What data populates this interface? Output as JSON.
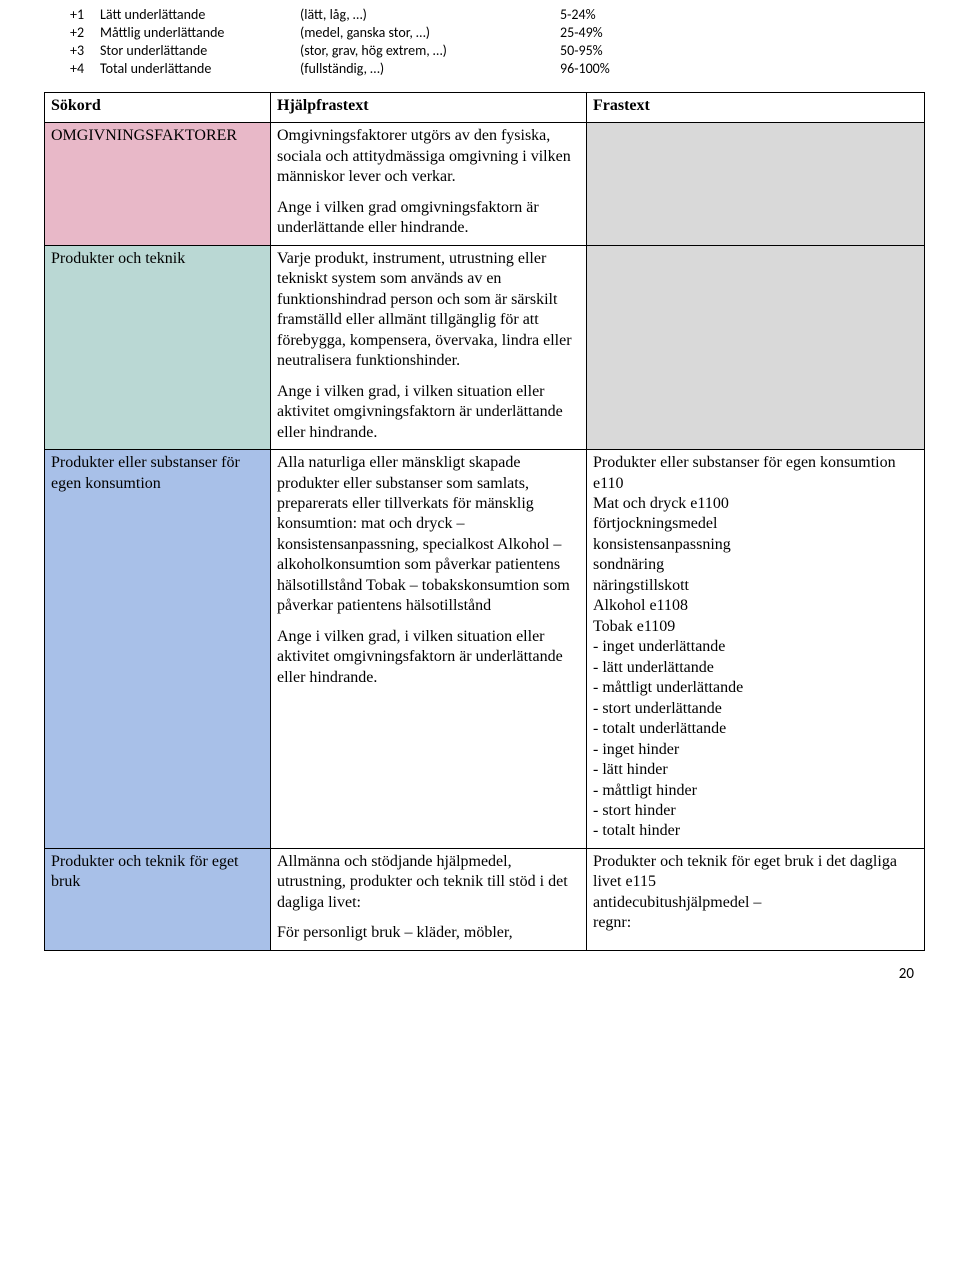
{
  "top": {
    "rows": [
      {
        "n": "+1",
        "label": "Lätt underlättande",
        "desc": "(lätt, låg, …)",
        "pct": "5-24%"
      },
      {
        "n": "+2",
        "label": "Måttlig underlättande",
        "desc": "(medel, ganska stor, …)",
        "pct": "25-49%"
      },
      {
        "n": "+3",
        "label": "Stor underlättande",
        "desc": "(stor, grav, hög extrem, …)",
        "pct": "50-95%"
      },
      {
        "n": "+4",
        "label": "Total underlättande",
        "desc": "(fullständig, …)",
        "pct": "96-100%"
      }
    ]
  },
  "header": {
    "a": "Sökord",
    "b": "Hjälpfrastext",
    "c": "Frastext"
  },
  "rows": [
    {
      "class": "row-pink",
      "a": "OMGIVNINGSFAKTORER",
      "b_p1": "Omgivningsfaktorer utgörs av den fysiska, sociala och attitydmässiga omgivning i vilken människor lever och verkar.",
      "b_p2": "Ange i vilken grad omgivningsfaktorn är underlättande eller hindrande.",
      "c": "",
      "c_gray": true
    },
    {
      "class": "row-teal",
      "a": "Produkter och teknik",
      "b_p1": "Varje produkt, instrument, utrustning eller tekniskt system som används av en funktionshindrad person och som är särskilt framställd eller allmänt tillgänglig för att förebygga, kompensera, övervaka, lindra eller neutralisera funktionshinder.",
      "b_p2": "Ange i vilken grad, i vilken situation eller aktivitet omgivningsfaktorn är underlättande eller hindrande.",
      "c": "",
      "c_gray": true
    },
    {
      "class": "row-blue",
      "a": "Produkter eller substanser för egen konsumtion",
      "b_p1": "Alla naturliga eller mänskligt skapade produkter eller substanser som samlats, preparerats eller tillverkats för mänsklig konsumtion: mat och dryck – konsistensanpassning, specialkost Alkohol – alkoholkonsumtion som påverkar patientens hälsotillstånd Tobak – tobakskonsumtion som påverkar patientens hälsotillstånd",
      "b_p2": "Ange i vilken grad, i vilken situation eller aktivitet omgivningsfaktorn är underlättande eller hindrande.",
      "c_lines": [
        "Produkter eller substanser för egen konsumtion e110",
        "Mat och dryck e1100",
        "förtjockningsmedel",
        "konsistensanpassning",
        "sondnäring",
        "näringstillskott",
        "Alkohol e1108",
        "Tobak e1109",
        "- inget underlättande",
        "- lätt underlättande",
        "- måttligt underlättande",
        "- stort underlättande",
        "- totalt underlättande",
        "- inget hinder",
        "- lätt hinder",
        "- måttligt hinder",
        "- stort hinder",
        "- totalt hinder"
      ],
      "c_gray": false
    },
    {
      "class": "row-blue",
      "a": "Produkter och teknik för eget bruk",
      "b_p1": "Allmänna och stödjande hjälpmedel, utrustning, produkter och teknik till stöd i det dagliga livet:",
      "b_p2": "För personligt bruk – kläder, möbler,",
      "c_lines": [
        "Produkter och teknik för eget bruk i det dagliga livet e115",
        "antidecubitushjälpmedel –",
        "regnr:"
      ],
      "c_gray": false
    }
  ],
  "page_num": "20"
}
